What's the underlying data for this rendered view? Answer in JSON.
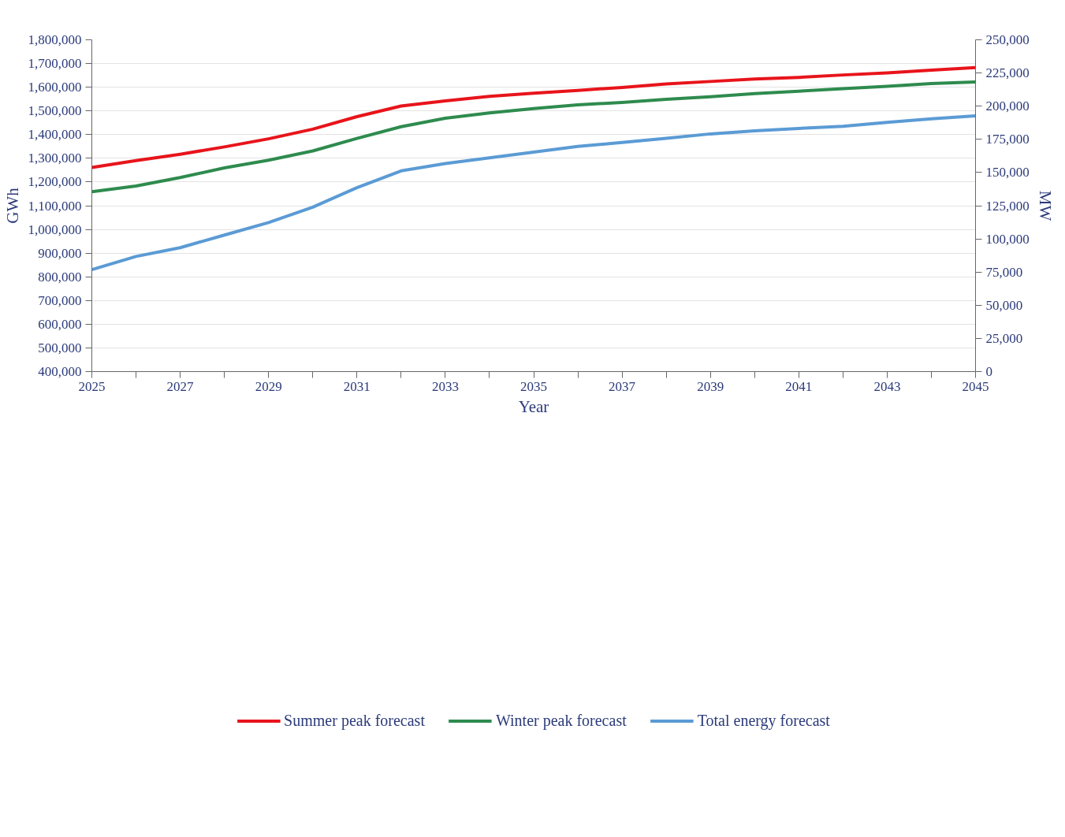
{
  "chart_data": {
    "type": "line",
    "xlabel": "Year",
    "ylabel": "GWh",
    "y2label": "MW",
    "x": [
      2025,
      2026,
      2027,
      2028,
      2029,
      2030,
      2031,
      2032,
      2033,
      2034,
      2035,
      2036,
      2037,
      2038,
      2039,
      2040,
      2041,
      2042,
      2043,
      2044,
      2045
    ],
    "series": [
      {
        "name": "Summer peak forecast",
        "color": "#e8141b",
        "axis": "y2",
        "values": [
          153800,
          159000,
          163800,
          169300,
          175400,
          182700,
          192100,
          200100,
          204000,
          207400,
          209800,
          211900,
          214100,
          216800,
          218600,
          220500,
          221700,
          223500,
          225000,
          227200,
          229000
        ]
      },
      {
        "name": "Winter peak forecast",
        "color": "#2e8b4e",
        "axis": "y2",
        "values": [
          135500,
          139800,
          146200,
          153500,
          159300,
          166300,
          175700,
          184500,
          190900,
          194900,
          198200,
          201000,
          202800,
          205200,
          207100,
          209500,
          211300,
          213200,
          215000,
          217100,
          218300
        ]
      },
      {
        "name": "Total energy forecast",
        "color": "#5b9bd5",
        "values": [
          830000,
          886000,
          923000,
          976000,
          1029000,
          1094000,
          1176000,
          1247000,
          1278000,
          1302000,
          1326000,
          1350000,
          1367000,
          1384000,
          1403000,
          1416000,
          1426000,
          1435000,
          1452000,
          1467000,
          1479000
        ]
      }
    ],
    "xlim": [
      2025,
      2045
    ],
    "xticks": [
      2025,
      {
        "value": 2026,
        "label": null
      },
      2027,
      {
        "value": 2028,
        "label": null
      },
      2029,
      {
        "value": 2030,
        "label": null
      },
      2031,
      {
        "value": 2032,
        "label": null
      },
      2033,
      {
        "value": 2034,
        "label": null
      },
      2035,
      {
        "value": 2036,
        "label": null
      },
      2037,
      {
        "value": 2038,
        "label": null
      },
      2039,
      {
        "value": 2040,
        "label": null
      },
      2041,
      {
        "value": 2042,
        "label": null
      },
      2043,
      {
        "value": 2044,
        "label": null
      },
      2045
    ],
    "ylim": [
      400000,
      1800000
    ],
    "yticks": [
      {
        "value": 400000,
        "label": "400,000"
      },
      {
        "value": 500000,
        "label": "500,000"
      },
      {
        "value": 600000,
        "label": "600,000"
      },
      {
        "value": 700000,
        "label": "700,000"
      },
      {
        "value": 800000,
        "label": "800,000"
      },
      {
        "value": 900000,
        "label": "900,000"
      },
      {
        "value": 1000000,
        "label": "1,000,000"
      },
      {
        "value": 1100000,
        "label": "1,100,000"
      },
      {
        "value": 1200000,
        "label": "1,200,000"
      },
      {
        "value": 1300000,
        "label": "1,300,000"
      },
      {
        "value": 1400000,
        "label": "1,400,000"
      },
      {
        "value": 1500000,
        "label": "1,500,000"
      },
      {
        "value": 1600000,
        "label": "1,600,000"
      },
      {
        "value": 1700000,
        "label": "1,700,000"
      },
      {
        "value": 1800000,
        "label": "1,800,000"
      }
    ],
    "y2lim": [
      0,
      250000
    ],
    "y2ticks": [
      0,
      {
        "value": 25000,
        "label": "25,000"
      },
      {
        "value": 50000,
        "label": "50,000"
      },
      {
        "value": 75000,
        "label": "75,000"
      },
      {
        "value": 100000,
        "label": "100,000"
      },
      {
        "value": 125000,
        "label": "125,000"
      },
      {
        "value": 150000,
        "label": "150,000"
      },
      {
        "value": 175000,
        "label": "175,000"
      },
      {
        "value": 200000,
        "label": "200,000"
      },
      {
        "value": 225000,
        "label": "225,000"
      },
      {
        "value": 250000,
        "label": "250,000"
      }
    ],
    "grid": "y",
    "legend": "bottom",
    "marker": "none",
    "line_style": "solid"
  }
}
